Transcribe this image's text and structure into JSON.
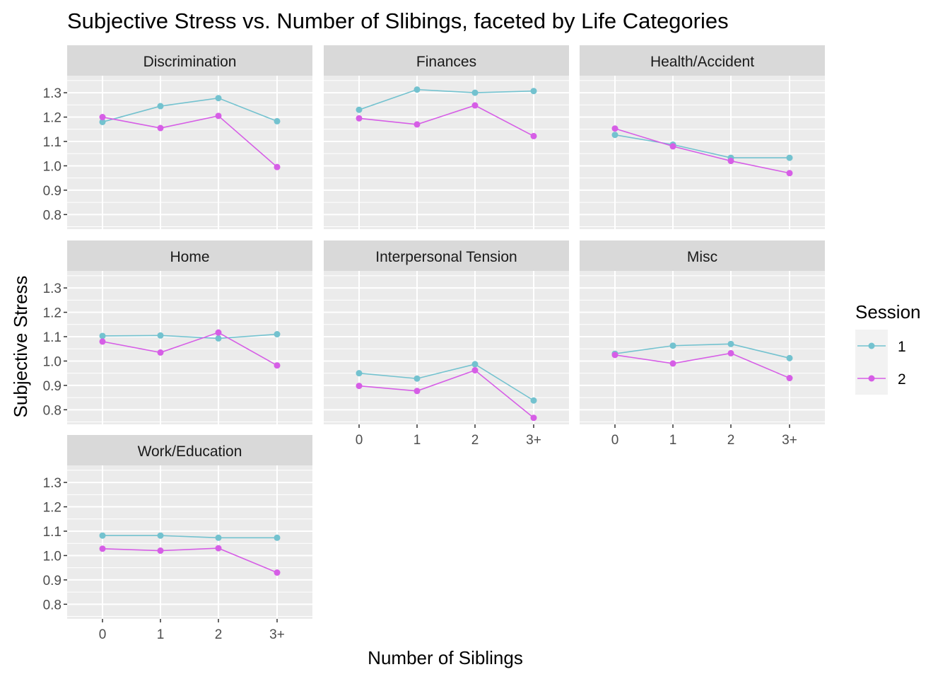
{
  "chart_data": {
    "type": "line",
    "title": "Subjective Stress vs. Number of Slibings, faceted by Life Categories",
    "xlabel": "Number of Siblings",
    "ylabel": "Subjective Stress",
    "categories": [
      "0",
      "1",
      "2",
      "3+"
    ],
    "ylim": [
      0.74,
      1.37
    ],
    "yticks": [
      "0.8",
      "0.9",
      "1.0",
      "1.1",
      "1.2",
      "1.3"
    ],
    "grid": true,
    "legend": {
      "title": "Session",
      "position": "right",
      "entries": [
        {
          "label": "1",
          "color": "#73c2cf"
        },
        {
          "label": "2",
          "color": "#d65ee6"
        }
      ]
    },
    "facets": [
      {
        "name": "Discrimination",
        "series": [
          {
            "name": "1",
            "values": [
              1.18,
              1.245,
              1.278,
              1.183
            ]
          },
          {
            "name": "2",
            "values": [
              1.2,
              1.155,
              1.205,
              0.995
            ]
          }
        ]
      },
      {
        "name": "Finances",
        "series": [
          {
            "name": "1",
            "values": [
              1.23,
              1.313,
              1.3,
              1.307
            ]
          },
          {
            "name": "2",
            "values": [
              1.195,
              1.17,
              1.248,
              1.122
            ]
          }
        ]
      },
      {
        "name": "Health/Accident",
        "series": [
          {
            "name": "1",
            "values": [
              1.127,
              1.087,
              1.033,
              1.033
            ]
          },
          {
            "name": "2",
            "values": [
              1.153,
              1.08,
              1.02,
              0.97
            ]
          }
        ]
      },
      {
        "name": "Home",
        "series": [
          {
            "name": "1",
            "values": [
              1.103,
              1.105,
              1.093,
              1.11
            ]
          },
          {
            "name": "2",
            "values": [
              1.08,
              1.035,
              1.117,
              0.982
            ]
          }
        ]
      },
      {
        "name": "Interpersonal Tension",
        "series": [
          {
            "name": "1",
            "values": [
              0.95,
              0.928,
              0.987,
              0.838
            ]
          },
          {
            "name": "2",
            "values": [
              0.898,
              0.877,
              0.962,
              0.767
            ]
          }
        ]
      },
      {
        "name": "Misc",
        "series": [
          {
            "name": "1",
            "values": [
              1.03,
              1.063,
              1.07,
              1.012
            ]
          },
          {
            "name": "2",
            "values": [
              1.025,
              0.99,
              1.032,
              0.93
            ]
          }
        ]
      },
      {
        "name": "Work/Education",
        "series": [
          {
            "name": "1",
            "values": [
              1.082,
              1.082,
              1.073,
              1.073
            ]
          },
          {
            "name": "2",
            "values": [
              1.028,
              1.02,
              1.03,
              0.93
            ]
          }
        ]
      }
    ]
  }
}
